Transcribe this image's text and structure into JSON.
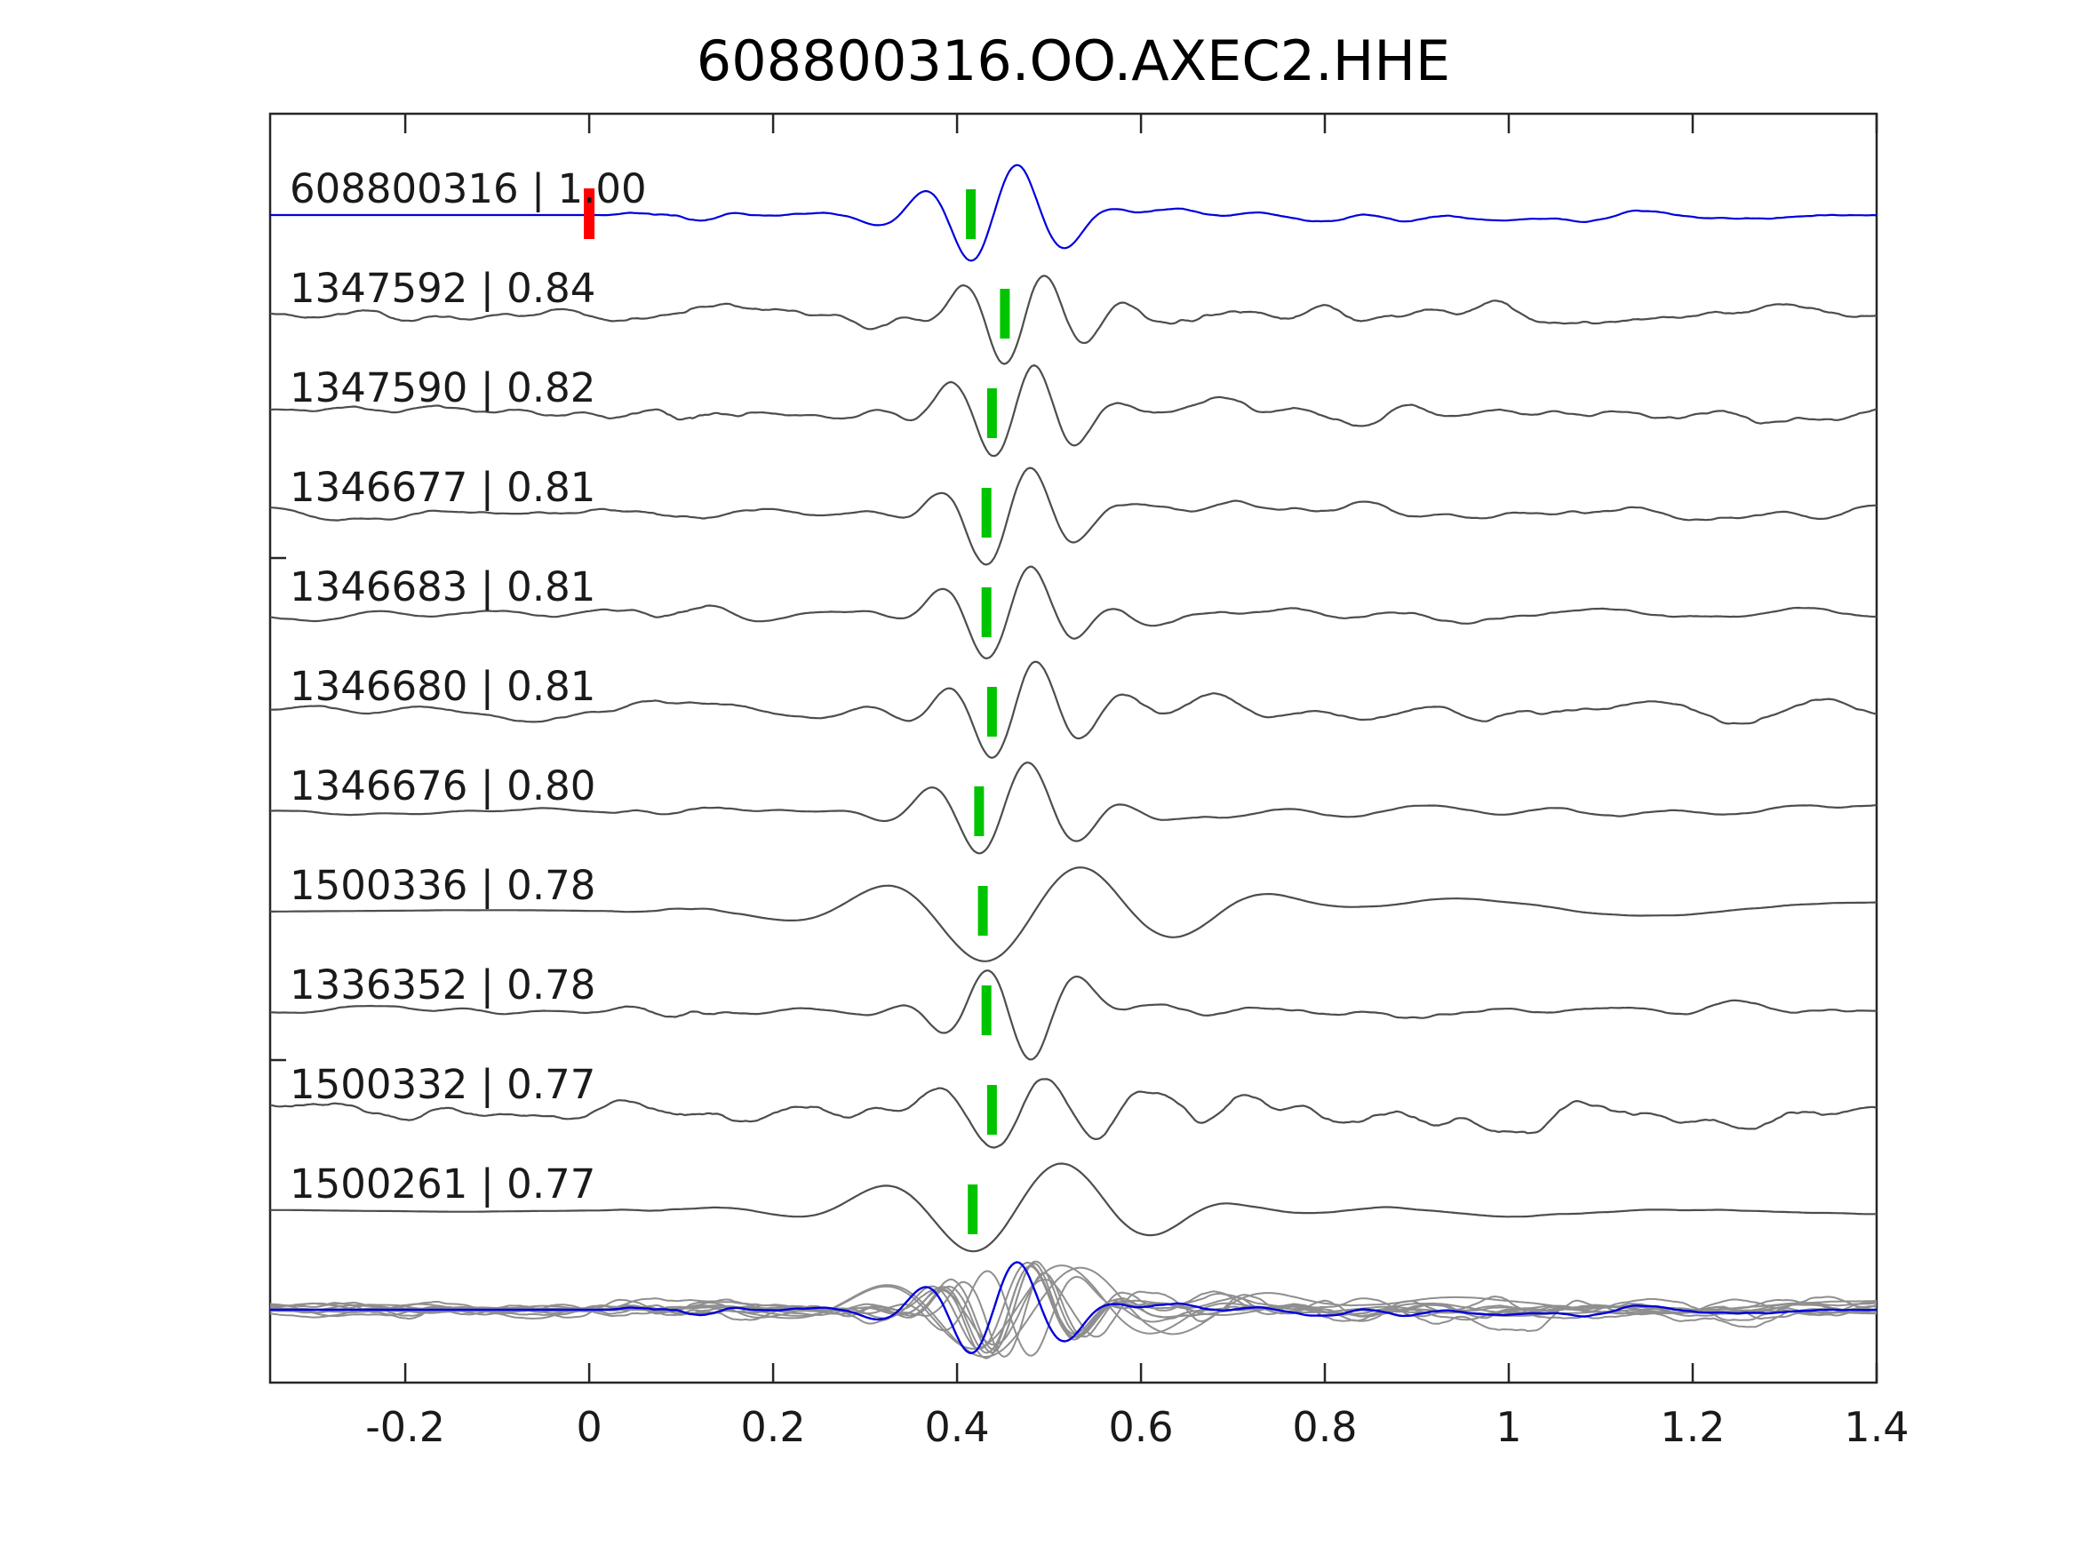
{
  "title": "608800316.OO.AXEC2.HHE",
  "chart_data": {
    "type": "line",
    "subtype": "seismic-waveform-template-match-stack",
    "title": "608800316.OO.AXEC2.HHE",
    "xlabel": "",
    "ylabel": "",
    "axis": {
      "x_min": -0.347,
      "x_max": 1.4,
      "ticks": [
        -0.2,
        0,
        0.2,
        0.4,
        0.6,
        0.8,
        1,
        1.2,
        1.4
      ],
      "tick_labels": [
        "-0.2",
        "0",
        "0.2",
        "0.4",
        "0.6",
        "0.8",
        "1",
        "1.2",
        "1.4"
      ],
      "grid": false,
      "legend": "none"
    },
    "colors": {
      "template_trace": "#0000dd",
      "detection_trace": "#4d4d4d",
      "overlay_gray": "#8f8f8f",
      "pick_marker_green": "#00c400",
      "template_pick_red": "#ff0000",
      "frame": "#262626",
      "text": "#1a1a1a",
      "background": "#ffffff"
    },
    "template_pick_time": 0.0,
    "traces": [
      {
        "id": "608800316",
        "correlation": 1.0,
        "label": "608800316 | 1.00",
        "pick_time": 0.415,
        "is_template": true,
        "synth": {
          "seed": 11,
          "noise_amp": 6,
          "noise_smooth": 8,
          "burst_amp": 10,
          "arrival_amp": 58,
          "period": 0.105,
          "flip": 1,
          "coda_amp": 16,
          "coda_smooth": 9,
          "template": true
        }
      },
      {
        "id": "1347592",
        "correlation": 0.84,
        "label": "1347592 | 0.84",
        "pick_time": 0.452,
        "is_template": false,
        "synth": {
          "seed": 21,
          "noise_amp": 17,
          "noise_smooth": 6,
          "burst_amp": 12,
          "arrival_amp": 52,
          "period": 0.09,
          "flip": 1,
          "coda_amp": 21,
          "coda_smooth": 7,
          "template": false
        }
      },
      {
        "id": "1347590",
        "correlation": 0.82,
        "label": "1347590 | 0.82",
        "pick_time": 0.438,
        "is_template": false,
        "synth": {
          "seed": 33,
          "noise_amp": 13,
          "noise_smooth": 7,
          "burst_amp": 14,
          "arrival_amp": 56,
          "period": 0.095,
          "flip": 1,
          "coda_amp": 19,
          "coda_smooth": 8,
          "template": false
        }
      },
      {
        "id": "1346677",
        "correlation": 0.81,
        "label": "1346677 | 0.81",
        "pick_time": 0.432,
        "is_template": false,
        "synth": {
          "seed": 41,
          "noise_amp": 11,
          "noise_smooth": 8,
          "burst_amp": 10,
          "arrival_amp": 54,
          "period": 0.1,
          "flip": 1,
          "coda_amp": 17,
          "coda_smooth": 8,
          "template": false
        }
      },
      {
        "id": "1346683",
        "correlation": 0.81,
        "label": "1346683 | 0.81",
        "pick_time": 0.432,
        "is_template": false,
        "synth": {
          "seed": 55,
          "noise_amp": 9,
          "noise_smooth": 9,
          "burst_amp": 8,
          "arrival_amp": 54,
          "period": 0.1,
          "flip": 1,
          "coda_amp": 15,
          "coda_smooth": 9,
          "template": false
        }
      },
      {
        "id": "1346680",
        "correlation": 0.81,
        "label": "1346680 | 0.81",
        "pick_time": 0.438,
        "is_template": false,
        "synth": {
          "seed": 61,
          "noise_amp": 11,
          "noise_smooth": 8,
          "burst_amp": 9,
          "arrival_amp": 56,
          "period": 0.1,
          "flip": 1,
          "coda_amp": 16,
          "coda_smooth": 8,
          "template": false
        }
      },
      {
        "id": "1346676",
        "correlation": 0.8,
        "label": "1346676 | 0.80",
        "pick_time": 0.424,
        "is_template": false,
        "synth": {
          "seed": 71,
          "noise_amp": 8,
          "noise_smooth": 10,
          "burst_amp": 8,
          "arrival_amp": 54,
          "period": 0.11,
          "flip": 1,
          "coda_amp": 13,
          "coda_smooth": 10,
          "template": false
        }
      },
      {
        "id": "1500336",
        "correlation": 0.78,
        "label": "1500336 | 0.78",
        "pick_time": 0.428,
        "is_template": false,
        "synth": {
          "seed": 83,
          "noise_amp": 4,
          "noise_smooth": 34,
          "burst_amp": 3,
          "arrival_amp": 58,
          "period": 0.22,
          "flip": 1,
          "coda_amp": 24,
          "coda_smooth": 30,
          "template": false
        }
      },
      {
        "id": "1336352",
        "correlation": 0.78,
        "label": "1336352 | 0.78",
        "pick_time": 0.432,
        "is_template": false,
        "synth": {
          "seed": 91,
          "noise_amp": 8,
          "noise_smooth": 7,
          "burst_amp": 11,
          "arrival_amp": 54,
          "period": 0.1,
          "flip": -1,
          "coda_amp": 17,
          "coda_smooth": 8,
          "template": false
        }
      },
      {
        "id": "1500332",
        "correlation": 0.77,
        "label": "1500332 | 0.77",
        "pick_time": 0.438,
        "is_template": false,
        "synth": {
          "seed": 104,
          "noise_amp": 18,
          "noise_smooth": 6,
          "burst_amp": 9,
          "arrival_amp": 44,
          "period": 0.13,
          "flip": 1,
          "coda_amp": 27,
          "coda_smooth": 7,
          "template": false
        }
      },
      {
        "id": "1500261",
        "correlation": 0.77,
        "label": "1500261 | 0.77",
        "pick_time": 0.417,
        "is_template": false,
        "synth": {
          "seed": 111,
          "noise_amp": 4,
          "noise_smooth": 32,
          "burst_amp": 3,
          "arrival_amp": 52,
          "period": 0.2,
          "flip": 1,
          "coda_amp": 22,
          "coda_smooth": 28,
          "template": false
        }
      }
    ],
    "overlay_row": {
      "description": "All detection traces plus blue template overplotted at the bottom",
      "scale": 0.95
    }
  }
}
